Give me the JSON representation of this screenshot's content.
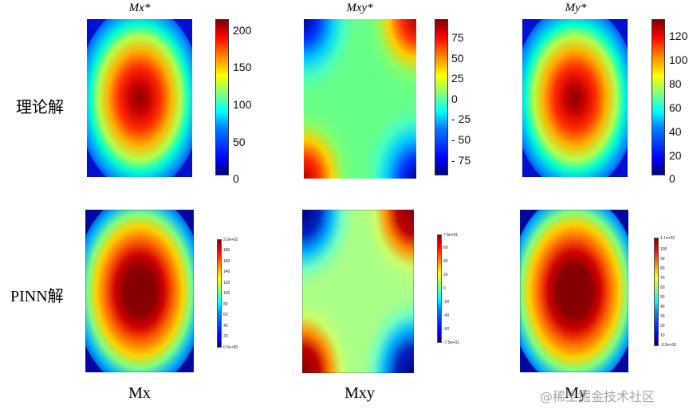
{
  "labels": {
    "row_theory": "理论解",
    "row_pinn": "PINN解",
    "bottom_mx": "Mx",
    "bottom_mxy": "Mxy",
    "bottom_my": "My",
    "watermark": "@稀土掘金技术社区"
  },
  "chart_data": [
    {
      "type": "heatmap",
      "title": "Mx*",
      "field": "Mx",
      "row": "理论解",
      "colorbar": {
        "ticks": [
          "0",
          "50",
          "100",
          "150",
          "200"
        ],
        "range": [
          0,
          215
        ]
      },
      "colormap": "jet"
    },
    {
      "type": "heatmap",
      "title": "Mxy*",
      "field": "Mxy",
      "row": "理论解",
      "colorbar": {
        "ticks": [
          "- 75",
          "- 50",
          "- 25",
          "0",
          "25",
          "50",
          "75"
        ],
        "range": [
          -95,
          95
        ]
      },
      "colormap": "jet"
    },
    {
      "type": "heatmap",
      "title": "My*",
      "field": "My",
      "row": "理论解",
      "colorbar": {
        "ticks": [
          "0",
          "20",
          "40",
          "60",
          "80",
          "100",
          "120"
        ],
        "range": [
          0,
          135
        ]
      },
      "colormap": "jet"
    },
    {
      "type": "heatmap",
      "title": "",
      "field": "Mx",
      "row": "PINN解",
      "colorbar": {
        "ticks": [
          "0.0e+00",
          "20",
          "40",
          "60",
          "80",
          "100",
          "120",
          "140",
          "160",
          "180",
          "2.0e+02"
        ],
        "range": [
          0,
          200
        ]
      },
      "colormap": "jet"
    },
    {
      "type": "heatmap",
      "title": "",
      "field": "Mxy",
      "row": "PINN解",
      "colorbar": {
        "ticks": [
          "-7.5e+01",
          "-60",
          "-40",
          "-20",
          "0",
          "20",
          "40",
          "60",
          "7.5e+01"
        ],
        "range": [
          -75,
          75
        ]
      },
      "colormap": "jet"
    },
    {
      "type": "heatmap",
      "title": "",
      "field": "My",
      "row": "PINN解",
      "colorbar": {
        "ticks": [
          "-3.5e+00",
          "10",
          "20",
          "30",
          "40",
          "50",
          "60",
          "70",
          "80",
          "90",
          "100",
          "1.1e+02"
        ],
        "range": [
          -3.5,
          110
        ]
      },
      "colormap": "jet"
    }
  ]
}
